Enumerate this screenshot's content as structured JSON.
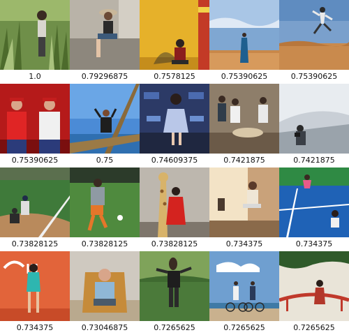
{
  "grid": {
    "items": [
      {
        "score": "1.0",
        "subject": "woman in grass field"
      },
      {
        "score": "0.79296875",
        "subject": "woman sitting on wall with hat"
      },
      {
        "score": "0.7578125",
        "subject": "person crouching by yellow wall"
      },
      {
        "score": "0.75390625",
        "subject": "woman in blue dress on desert"
      },
      {
        "score": "0.75390625",
        "subject": "person jumping in desert"
      },
      {
        "score": "0.75390625",
        "subject": "two men in red racing suits"
      },
      {
        "score": "0.75",
        "subject": "man on boat with sky"
      },
      {
        "score": "0.74609375",
        "subject": "woman at premiere backdrop"
      },
      {
        "score": "0.7421875",
        "subject": "people around table indoors"
      },
      {
        "score": "0.7421875",
        "subject": "person with camera in mist"
      },
      {
        "score": "0.73828125",
        "subject": "baseball batter and catcher"
      },
      {
        "score": "0.73828125",
        "subject": "soccer player kicking"
      },
      {
        "score": "0.73828125",
        "subject": "woman in red dress with giraffe"
      },
      {
        "score": "0.734375",
        "subject": "woman with laptop in office"
      },
      {
        "score": "0.734375",
        "subject": "tennis players on blue court"
      },
      {
        "score": "0.734375",
        "subject": "woman in green dress orange wall"
      },
      {
        "score": "0.73046875",
        "subject": "man sitting in chair"
      },
      {
        "score": "0.7265625",
        "subject": "person in horse mask on lawn"
      },
      {
        "score": "0.7265625",
        "subject": "couple with bikes by sea"
      },
      {
        "score": "0.7265625",
        "subject": "person on red bridge"
      }
    ]
  }
}
